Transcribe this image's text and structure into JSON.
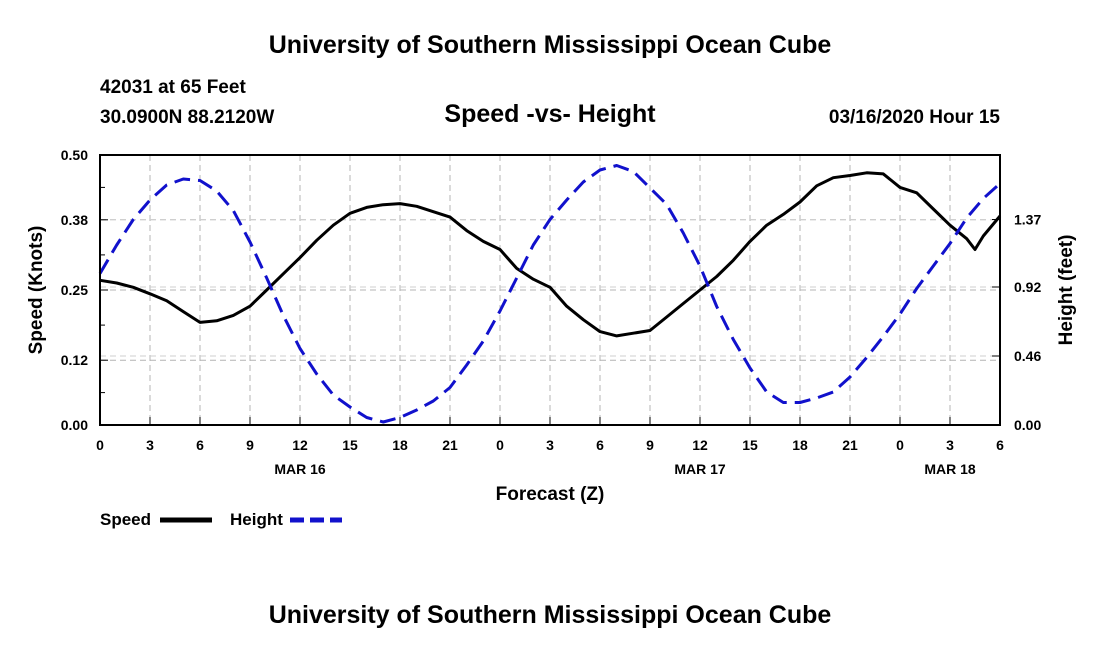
{
  "header": {
    "top_title": "University of Southern Mississippi Ocean Cube",
    "station": "42031 at 65 Feet",
    "coords": "30.0900N 88.2120W",
    "chart_title": "Speed -vs- Height",
    "datetime": "03/16/2020 Hour 15"
  },
  "footer": {
    "bottom_title": "University of Southern Mississippi Ocean Cube"
  },
  "colors": {
    "speed": "#000000",
    "height": "#1111cc",
    "grid": "#b4b4b4"
  },
  "chart_data": {
    "type": "line",
    "title": "Speed -vs- Height",
    "xlabel": "Forecast (Z)",
    "ylabel": "Speed (Knots)",
    "y2label": "Height (feet)",
    "x_range": [
      0,
      54
    ],
    "ylim": [
      0,
      0.5
    ],
    "y2lim": [
      0,
      1.8
    ],
    "x_ticks": [
      0,
      3,
      6,
      9,
      12,
      15,
      18,
      21,
      24,
      27,
      30,
      33,
      36,
      39,
      42,
      45,
      48,
      51,
      54
    ],
    "x_tick_labels": [
      "0",
      "3",
      "6",
      "9",
      "12",
      "15",
      "18",
      "21",
      "0",
      "3",
      "6",
      "9",
      "12",
      "15",
      "18",
      "21",
      "0",
      "3",
      "6"
    ],
    "date_labels": [
      {
        "label": "MAR 16",
        "x": 12
      },
      {
        "label": "MAR 17",
        "x": 36
      },
      {
        "label": "MAR 18",
        "x": 51
      }
    ],
    "y_ticks": [
      0.0,
      0.12,
      0.25,
      0.38,
      0.5
    ],
    "y_tick_labels": [
      "0.00",
      "0.12",
      "0.25",
      "0.38",
      "0.50"
    ],
    "y2_ticks": [
      0.0,
      0.46,
      0.92,
      1.37
    ],
    "y2_tick_labels": [
      "0.00",
      "0.46",
      "0.92",
      "1.37"
    ],
    "grid": true,
    "series": [
      {
        "name": "Speed",
        "axis": "left",
        "style": "solid",
        "x": [
          0,
          1,
          2,
          3,
          4,
          5,
          6,
          7,
          8,
          9,
          10,
          11,
          12,
          13,
          14,
          15,
          16,
          17,
          18,
          19,
          20,
          21,
          22,
          23,
          24,
          25,
          26,
          27,
          28,
          29,
          30,
          31,
          32,
          33,
          34,
          35,
          36,
          37,
          38,
          39,
          40,
          41,
          42,
          43,
          44,
          45,
          46,
          47,
          48,
          49,
          50,
          51,
          52,
          52.5,
          53,
          54
        ],
        "values": [
          0.268,
          0.263,
          0.255,
          0.243,
          0.23,
          0.21,
          0.19,
          0.193,
          0.203,
          0.22,
          0.25,
          0.28,
          0.31,
          0.342,
          0.37,
          0.392,
          0.403,
          0.408,
          0.41,
          0.405,
          0.395,
          0.385,
          0.36,
          0.34,
          0.325,
          0.29,
          0.27,
          0.255,
          0.22,
          0.195,
          0.173,
          0.165,
          0.17,
          0.175,
          0.2,
          0.225,
          0.25,
          0.275,
          0.305,
          0.34,
          0.37,
          0.39,
          0.413,
          0.443,
          0.458,
          0.462,
          0.467,
          0.465,
          0.44,
          0.43,
          0.4,
          0.37,
          0.345,
          0.325,
          0.35,
          0.387
        ]
      },
      {
        "name": "Height",
        "axis": "right",
        "style": "dashed",
        "x": [
          0,
          1,
          2,
          3,
          4,
          5,
          6,
          7,
          8,
          9,
          10,
          11,
          12,
          13,
          14,
          15,
          16,
          17,
          18,
          19,
          20,
          21,
          22,
          23,
          24,
          25,
          26,
          27,
          28,
          29,
          30,
          31,
          32,
          33,
          34,
          35,
          36,
          37,
          38,
          39,
          40,
          41,
          42,
          43,
          44,
          45,
          46,
          47,
          48,
          49,
          50,
          51,
          52,
          53,
          54
        ],
        "values": [
          1.01,
          1.2,
          1.37,
          1.5,
          1.6,
          1.64,
          1.63,
          1.56,
          1.43,
          1.22,
          0.98,
          0.73,
          0.51,
          0.34,
          0.2,
          0.12,
          0.05,
          0.02,
          0.05,
          0.1,
          0.16,
          0.25,
          0.4,
          0.56,
          0.76,
          0.98,
          1.2,
          1.37,
          1.5,
          1.62,
          1.7,
          1.73,
          1.69,
          1.58,
          1.47,
          1.28,
          1.06,
          0.79,
          0.57,
          0.38,
          0.22,
          0.15,
          0.15,
          0.18,
          0.22,
          0.32,
          0.45,
          0.59,
          0.74,
          0.91,
          1.06,
          1.21,
          1.38,
          1.51,
          1.61
        ]
      }
    ],
    "legend": [
      {
        "label": "Speed",
        "style": "solid"
      },
      {
        "label": "Height",
        "style": "dashed"
      }
    ]
  }
}
